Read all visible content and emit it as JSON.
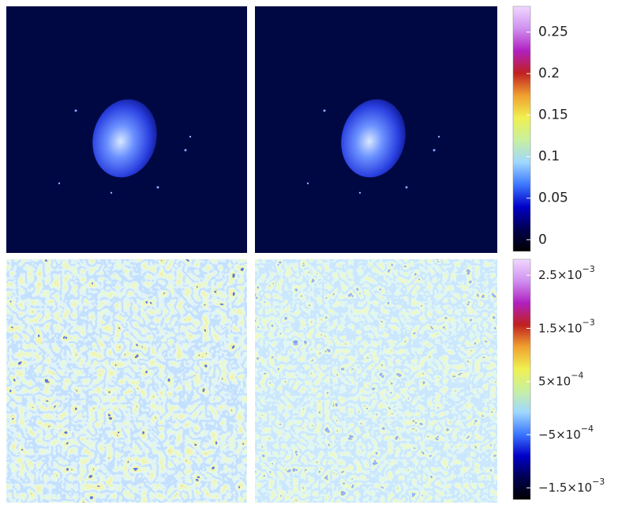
{
  "chart_data": [
    {
      "type": "image",
      "zlim": [
        -0.014,
        0.281
      ],
      "zticks": [
        0,
        0.05,
        0.1,
        0.15,
        0.2,
        0.25
      ],
      "colormap": [
        "#000000",
        "#000050",
        "#0000c8",
        "#3c78ff",
        "#a0d8ff",
        "#c8f0a0",
        "#f0f050",
        "#f0a030",
        "#c02020",
        "#b020c0",
        "#d090f0",
        "#f0d8ff"
      ]
    },
    {
      "type": "image",
      "zlim": [
        -0.00172,
        0.0028
      ],
      "zticks": [
        {
          "value": -0.0015,
          "label": "−1.5×10",
          "exponent": "−3"
        },
        {
          "value": -0.0005,
          "label": "−5×10",
          "exponent": "−4"
        },
        {
          "value": 0.0005,
          "label": "5×10",
          "exponent": "−4"
        },
        {
          "value": 0.0015,
          "label": "1.5×10",
          "exponent": "−3"
        },
        {
          "value": 0.0025,
          "label": "2.5×10",
          "exponent": "−3"
        }
      ],
      "colormap": [
        "#000000",
        "#000050",
        "#0000c8",
        "#3c78ff",
        "#a0d8ff",
        "#c8f0a0",
        "#f0f050",
        "#f0a030",
        "#c02020",
        "#b020c0",
        "#d090f0",
        "#f0d8ff"
      ]
    }
  ]
}
